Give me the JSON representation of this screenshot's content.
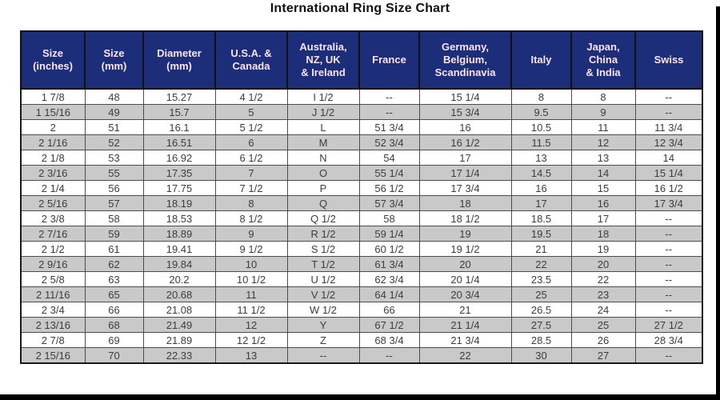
{
  "title": "International Ring Size Chart",
  "colors": {
    "header_bg": "#1c2d7a",
    "header_text": "#fbe3ea",
    "row_bg": "#ffffff",
    "row_alt_bg": "#c9c9c9",
    "data_text": "#3d3d3d",
    "frame": "#000000"
  },
  "chart_data": {
    "type": "table",
    "title": "International Ring Size Chart",
    "columns": [
      "Size\n(inches)",
      "Size\n(mm)",
      "Diameter\n(mm)",
      "U.S.A. &\nCanada",
      "Australia,\nNZ, UK\n& Ireland",
      "France",
      "Germany,\nBelgium,\nScandinavia",
      "Italy",
      "Japan,\nChina\n& India",
      "Swiss"
    ],
    "rows": [
      [
        "1 7/8",
        "48",
        "15.27",
        "4 1/2",
        "I 1/2",
        "--",
        "15 1/4",
        "8",
        "8",
        "--"
      ],
      [
        "1 15/16",
        "49",
        "15.7",
        "5",
        "J 1/2",
        "--",
        "15 3/4",
        "9.5",
        "9",
        "--"
      ],
      [
        "2",
        "51",
        "16.1",
        "5 1/2",
        "L",
        "51 3/4",
        "16",
        "10.5",
        "11",
        "11 3/4"
      ],
      [
        "2 1/16",
        "52",
        "16.51",
        "6",
        "M",
        "52 3/4",
        "16 1/2",
        "11.5",
        "12",
        "12 3/4"
      ],
      [
        "2 1/8",
        "53",
        "16.92",
        "6 1/2",
        "N",
        "54",
        "17",
        "13",
        "13",
        "14"
      ],
      [
        "2 3/16",
        "55",
        "17.35",
        "7",
        "O",
        "55 1/4",
        "17 1/4",
        "14.5",
        "14",
        "15 1/4"
      ],
      [
        "2 1/4",
        "56",
        "17.75",
        "7 1/2",
        "P",
        "56 1/2",
        "17 3/4",
        "16",
        "15",
        "16 1/2"
      ],
      [
        "2 5/16",
        "57",
        "18.19",
        "8",
        "Q",
        "57 3/4",
        "18",
        "17",
        "16",
        "17 3/4"
      ],
      [
        "2 3/8",
        "58",
        "18.53",
        "8 1/2",
        "Q 1/2",
        "58",
        "18 1/2",
        "18.5",
        "17",
        "--"
      ],
      [
        "2 7/16",
        "59",
        "18.89",
        "9",
        "R 1/2",
        "59 1/4",
        "19",
        "19.5",
        "18",
        "--"
      ],
      [
        "2 1/2",
        "61",
        "19.41",
        "9 1/2",
        "S 1/2",
        "60 1/2",
        "19 1/2",
        "21",
        "19",
        "--"
      ],
      [
        "2 9/16",
        "62",
        "19.84",
        "10",
        "T 1/2",
        "61 3/4",
        "20",
        "22",
        "20",
        "--"
      ],
      [
        "2 5/8",
        "63",
        "20.2",
        "10 1/2",
        "U 1/2",
        "62 3/4",
        "20 1/4",
        "23.5",
        "22",
        "--"
      ],
      [
        "2 11/16",
        "65",
        "20.68",
        "11",
        "V 1/2",
        "64 1/4",
        "20 3/4",
        "25",
        "23",
        "--"
      ],
      [
        "2 3/4",
        "66",
        "21.08",
        "11 1/2",
        "W 1/2",
        "66",
        "21",
        "26.5",
        "24",
        "--"
      ],
      [
        "2 13/16",
        "68",
        "21.49",
        "12",
        "Y",
        "67 1/2",
        "21 1/4",
        "27.5",
        "25",
        "27 1/2"
      ],
      [
        "2 7/8",
        "69",
        "21.89",
        "12 1/2",
        "Z",
        "68 3/4",
        "21 3/4",
        "28.5",
        "26",
        "28 3/4"
      ],
      [
        "2 15/16",
        "70",
        "22.33",
        "13",
        "--",
        "--",
        "22",
        "30",
        "27",
        "--"
      ]
    ]
  }
}
